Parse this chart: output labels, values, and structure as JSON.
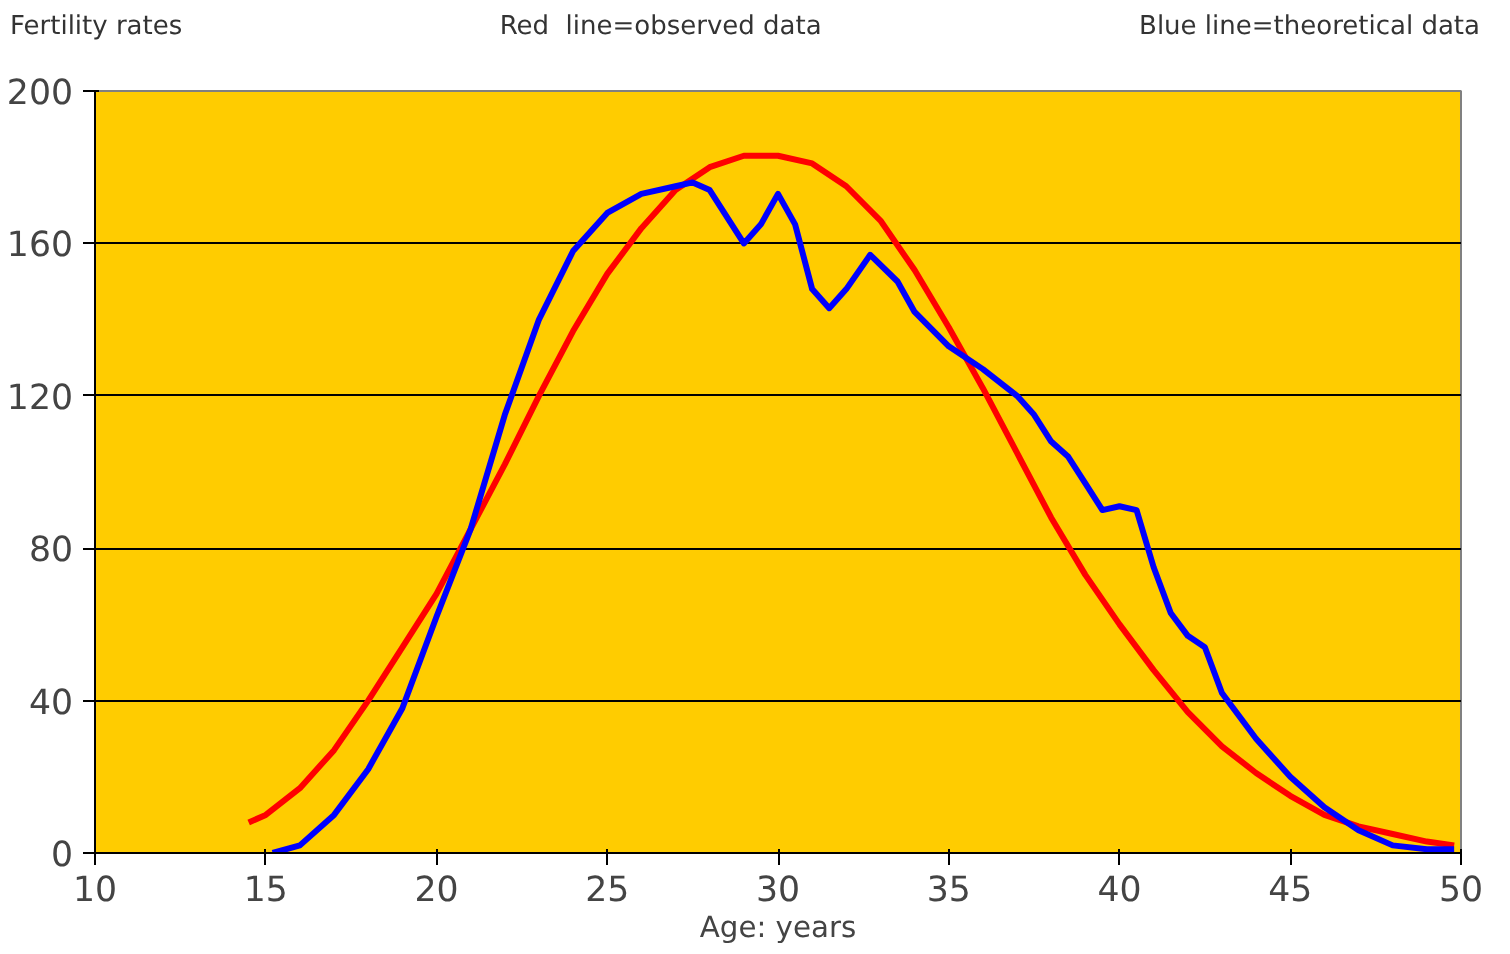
{
  "chart_data": {
    "type": "line",
    "title": "Fertility rates",
    "annotations": [
      "Red  line=observed data",
      "Blue line=theoretical data"
    ],
    "xlabel": "Age: years",
    "xlim": [
      10,
      50
    ],
    "xticks": [
      10,
      15,
      20,
      25,
      30,
      35,
      40,
      45,
      50
    ],
    "ylim": [
      0,
      200
    ],
    "yticks": [
      0,
      40,
      80,
      120,
      160,
      200
    ],
    "grid": "y",
    "series": [
      {
        "color": "#ff0000",
        "x": [
          14.5,
          15,
          16,
          17,
          18,
          19,
          20,
          21,
          22,
          23,
          24,
          25,
          26,
          27,
          28,
          29,
          30,
          31,
          32,
          33,
          34,
          35,
          36,
          37,
          38,
          39,
          40,
          41,
          42,
          43,
          44,
          45,
          46,
          47,
          48,
          49,
          49.8
        ],
        "values": [
          8,
          10,
          17,
          27,
          40,
          54,
          68,
          85,
          102,
          120,
          137,
          152,
          164,
          174,
          180,
          183,
          183,
          181,
          175,
          166,
          153,
          138,
          122,
          105,
          88,
          73,
          60,
          48,
          37,
          28,
          21,
          15,
          10,
          7,
          5,
          3,
          2
        ]
      },
      {
        "color": "#0000ff",
        "x": [
          15.2,
          16,
          17,
          18,
          19,
          20,
          21,
          22,
          23,
          24,
          25,
          26,
          27,
          27.5,
          28,
          29,
          29.5,
          30,
          30.5,
          31,
          31.5,
          32,
          32.7,
          33.5,
          34,
          35,
          36,
          37,
          37.5,
          38,
          38.5,
          39,
          39.5,
          40,
          40.5,
          41,
          41.5,
          42,
          42.5,
          43,
          44,
          45,
          46,
          47,
          48,
          49,
          49.8
        ],
        "values": [
          0,
          2,
          10,
          22,
          38,
          62,
          85,
          115,
          140,
          158,
          168,
          173,
          175,
          176,
          174,
          160,
          165,
          173,
          165,
          148,
          143,
          148,
          157,
          150,
          142,
          133,
          127,
          120,
          115,
          108,
          104,
          97,
          90,
          91,
          90,
          75,
          63,
          57,
          54,
          42,
          30,
          20,
          12,
          6,
          2,
          1,
          1
        ]
      }
    ]
  }
}
